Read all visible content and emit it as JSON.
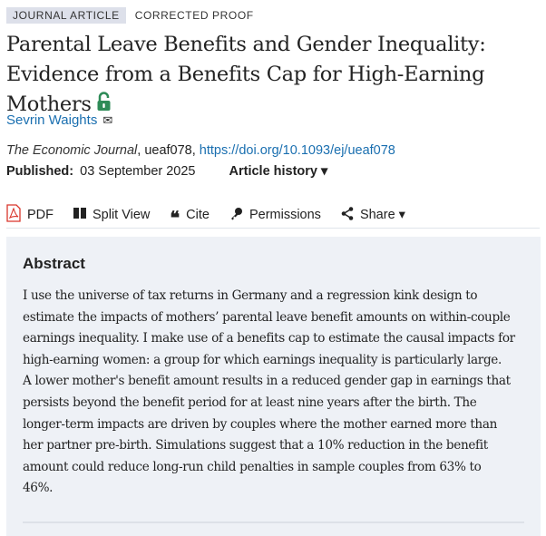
{
  "tags": {
    "type": "JOURNAL ARTICLE",
    "status": "CORRECTED PROOF"
  },
  "title_lines": [
    "Parental Leave Benefits and Gender Inequality:",
    "Evidence from a Benefits Cap for High-Earning",
    "Mothers"
  ],
  "open_access_icon": "unlocked-padlock-icon",
  "open_access_color": "#2e8b57",
  "author": {
    "name": "Sevrin Waights",
    "icon": "envelope-icon"
  },
  "citation": {
    "journal": "The Economic Journal",
    "id": ", ueaf078, ",
    "doi": "https://doi.org/10.1093/ej/ueaf078"
  },
  "published": {
    "label": "Published:",
    "date": "03 September 2025",
    "history": "Article history ▾"
  },
  "toolbar": [
    {
      "label": "PDF",
      "icon": "pdf-icon"
    },
    {
      "label": "Split View",
      "icon": "split-view-icon"
    },
    {
      "label": "Cite",
      "icon": "quote-icon"
    },
    {
      "label": "Permissions",
      "icon": "key-icon"
    },
    {
      "label": "Share ▾",
      "icon": "share-icon"
    }
  ],
  "abstract": {
    "heading": "Abstract",
    "lines": [
      "I use the universe of tax returns in Germany and a regression kink design to",
      "estimate the impacts of mothers’ parental leave benefit amounts on within-couple",
      "earnings inequality. I make use of a benefits cap to estimate the causal impacts for",
      "high-earning women: a group for which earnings inequality is particularly large.",
      "A lower mother's benefit amount results in a reduced gender gap in earnings that",
      "persists beyond the benefit period for at least nine years after the birth. The",
      "longer-term impacts are driven by couples where the mother earned more than",
      "her partner pre-birth. Simulations suggest that a 10% reduction in the benefit",
      "amount could reduce long-run child penalties in sample couples from 63% to",
      "46%."
    ]
  },
  "colors": {
    "link": "#1a6fb0",
    "pdf": "#d9352b",
    "abstract_bg": "#eef1f6"
  }
}
